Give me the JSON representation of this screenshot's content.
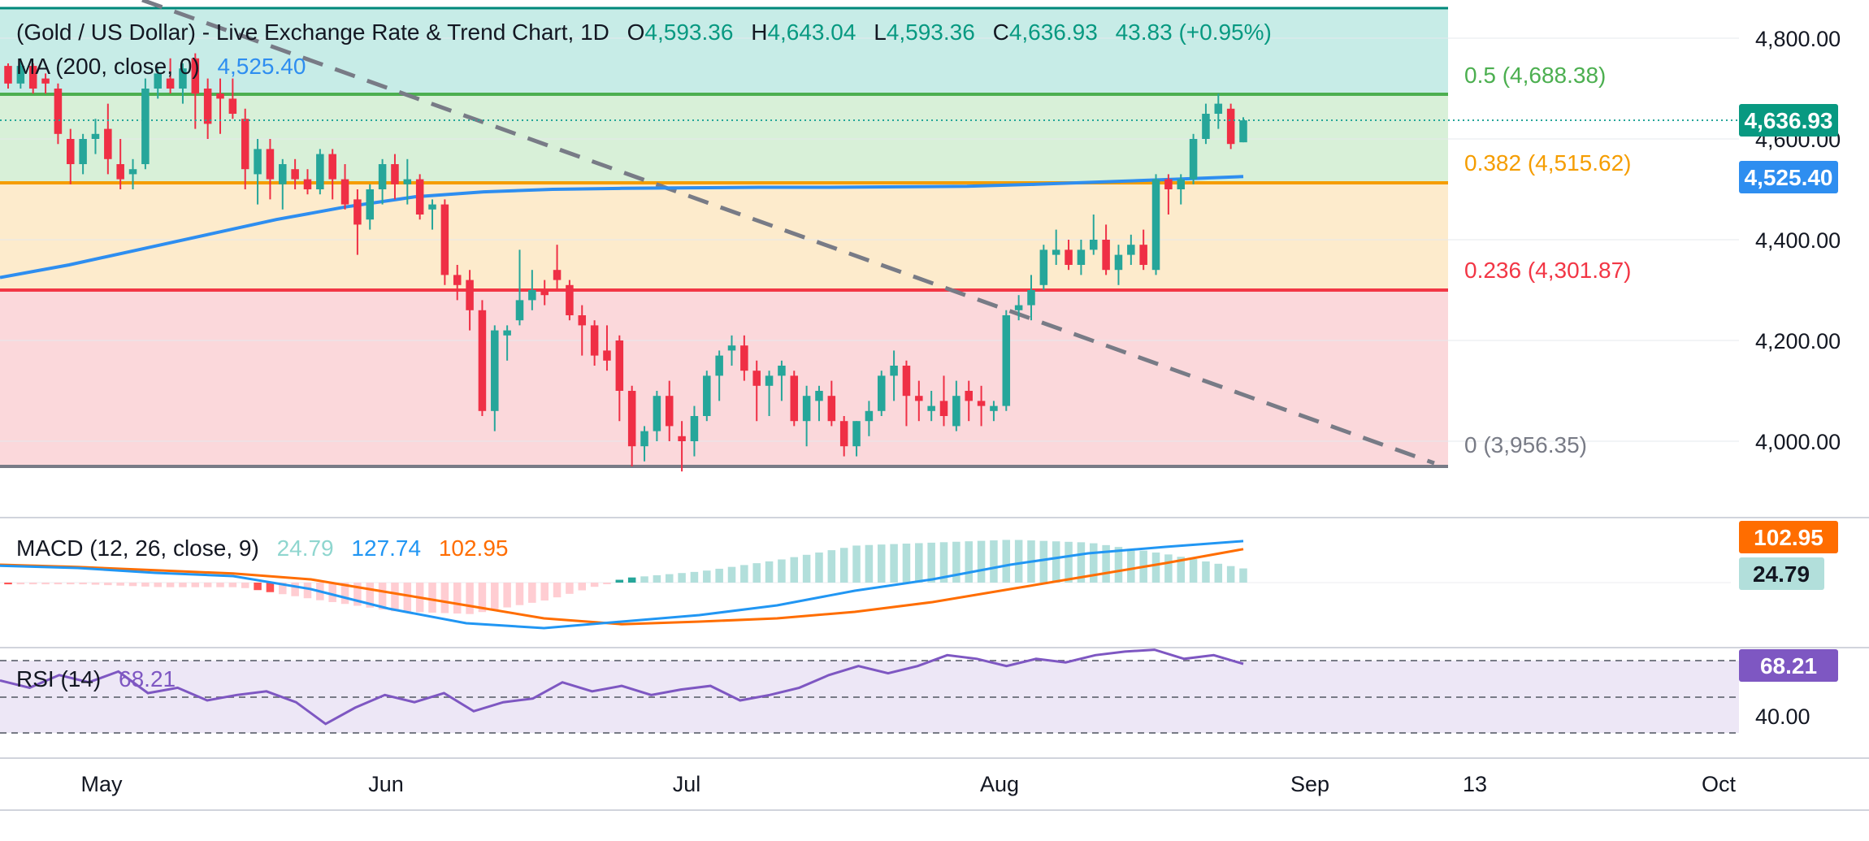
{
  "header": {
    "title": "(Gold / US Dollar) - Live Exchange Rate & Trend Chart, 1D",
    "o_label": "O",
    "o_value": "4,593.36",
    "h_label": "H",
    "h_value": "4,643.04",
    "l_label": "L",
    "l_value": "4,593.36",
    "c_label": "C",
    "c_value": "4,636.93",
    "change": "43.83 (+0.95%)"
  },
  "ma_legend": {
    "label": "MA (200, close, 0)",
    "value": "4,525.40"
  },
  "macd_legend": {
    "label": "MACD (12, 26, close, 9)",
    "histogram": "24.79",
    "macd": "127.74",
    "signal": "102.95"
  },
  "rsi_legend": {
    "label": "RSI (14)",
    "value": "68.21"
  },
  "fib_labels": {
    "f05": "0.5 (4,688.38)",
    "f0382": "0.382 (4,515.62)",
    "f0236": "0.236 (4,301.87)",
    "f0": "0 (3,956.35)"
  },
  "price_tags": {
    "close": "4,636.93",
    "ma": "4,525.40",
    "macd_signal": "102.95",
    "macd_hist": "24.79",
    "rsi": "68.21"
  },
  "price_axis": [
    "4,800.00",
    "4,600.00",
    "4,400.00",
    "4,200.00",
    "4,000.00"
  ],
  "rsi_axis": [
    "40.00"
  ],
  "time_axis": [
    "May",
    "Jun",
    "Jul",
    "Aug",
    "Sep",
    "13",
    "Oct"
  ],
  "colors": {
    "bull": "#26a69a",
    "bear": "#ef2f45",
    "ma": "#2e8ef0",
    "fib05": "#4caf50",
    "fib0382": "#f59d00",
    "fib0236": "#f23645",
    "fib0": "#787b86",
    "macd_line": "#2196f3",
    "signal_line": "#ff6d00",
    "rsi_line": "#7e57c2",
    "trend_line": "#787b86"
  },
  "chart_data": {
    "type": "candlestick",
    "price_ylim": [
      3900,
      4850
    ],
    "fib_levels": [
      {
        "ratio": 0.5,
        "price": 4688.38
      },
      {
        "ratio": 0.382,
        "price": 4515.62
      },
      {
        "ratio": 0.236,
        "price": 4301.87
      },
      {
        "ratio": 0,
        "price": 3956.35
      }
    ],
    "candles": [
      [
        4745,
        4750,
        4700,
        4710
      ],
      [
        4710,
        4760,
        4700,
        4745
      ],
      [
        4745,
        4750,
        4690,
        4700
      ],
      [
        4720,
        4730,
        4690,
        4710
      ],
      [
        4700,
        4710,
        4590,
        4610
      ],
      [
        4600,
        4620,
        4510,
        4550
      ],
      [
        4550,
        4610,
        4530,
        4600
      ],
      [
        4600,
        4640,
        4570,
        4610
      ],
      [
        4620,
        4670,
        4530,
        4560
      ],
      [
        4550,
        4600,
        4500,
        4520
      ],
      [
        4530,
        4560,
        4500,
        4540
      ],
      [
        4550,
        4720,
        4540,
        4700
      ],
      [
        4700,
        4740,
        4680,
        4730
      ],
      [
        4720,
        4760,
        4690,
        4700
      ],
      [
        4700,
        4750,
        4670,
        4740
      ],
      [
        4760,
        4770,
        4620,
        4690
      ],
      [
        4700,
        4720,
        4600,
        4630
      ],
      [
        4690,
        4720,
        4610,
        4680
      ],
      [
        4680,
        4720,
        4640,
        4650
      ],
      [
        4640,
        4660,
        4500,
        4540
      ],
      [
        4530,
        4600,
        4470,
        4580
      ],
      [
        4580,
        4600,
        4480,
        4520
      ],
      [
        4510,
        4560,
        4460,
        4550
      ],
      [
        4540,
        4560,
        4500,
        4520
      ],
      [
        4520,
        4540,
        4490,
        4500
      ],
      [
        4500,
        4580,
        4490,
        4570
      ],
      [
        4570,
        4580,
        4480,
        4520
      ],
      [
        4520,
        4550,
        4460,
        4470
      ],
      [
        4480,
        4500,
        4370,
        4430
      ],
      [
        4440,
        4510,
        4420,
        4500
      ],
      [
        4500,
        4560,
        4470,
        4550
      ],
      [
        4550,
        4570,
        4480,
        4510
      ],
      [
        4510,
        4560,
        4470,
        4520
      ],
      [
        4520,
        4530,
        4440,
        4450
      ],
      [
        4460,
        4480,
        4420,
        4470
      ],
      [
        4470,
        4480,
        4310,
        4330
      ],
      [
        4330,
        4350,
        4280,
        4310
      ],
      [
        4320,
        4340,
        4220,
        4260
      ],
      [
        4260,
        4280,
        4050,
        4060
      ],
      [
        4060,
        4230,
        4020,
        4220
      ],
      [
        4210,
        4230,
        4160,
        4220
      ],
      [
        4240,
        4380,
        4230,
        4280
      ],
      [
        4280,
        4340,
        4260,
        4300
      ],
      [
        4300,
        4320,
        4270,
        4290
      ],
      [
        4340,
        4390,
        4300,
        4320
      ],
      [
        4310,
        4320,
        4240,
        4250
      ],
      [
        4250,
        4270,
        4170,
        4230
      ],
      [
        4230,
        4240,
        4150,
        4170
      ],
      [
        4180,
        4230,
        4140,
        4160
      ],
      [
        4200,
        4210,
        4040,
        4100
      ],
      [
        4100,
        4110,
        3950,
        3990
      ],
      [
        3990,
        4030,
        3960,
        4020
      ],
      [
        4020,
        4100,
        4000,
        4090
      ],
      [
        4090,
        4120,
        4000,
        4030
      ],
      [
        4010,
        4040,
        3940,
        4000
      ],
      [
        4000,
        4070,
        3970,
        4050
      ],
      [
        4050,
        4140,
        4040,
        4130
      ],
      [
        4130,
        4180,
        4080,
        4170
      ],
      [
        4180,
        4210,
        4150,
        4190
      ],
      [
        4190,
        4210,
        4120,
        4140
      ],
      [
        4140,
        4160,
        4040,
        4110
      ],
      [
        4110,
        4140,
        4050,
        4130
      ],
      [
        4130,
        4160,
        4080,
        4150
      ],
      [
        4130,
        4140,
        4030,
        4040
      ],
      [
        4040,
        4110,
        3990,
        4090
      ],
      [
        4080,
        4110,
        4040,
        4100
      ],
      [
        4090,
        4120,
        4030,
        4040
      ],
      [
        4040,
        4050,
        3970,
        3990
      ],
      [
        3990,
        4040,
        3970,
        4040
      ],
      [
        4040,
        4080,
        4010,
        4060
      ],
      [
        4060,
        4140,
        4050,
        4130
      ],
      [
        4130,
        4180,
        4080,
        4150
      ],
      [
        4150,
        4160,
        4030,
        4090
      ],
      [
        4090,
        4120,
        4040,
        4080
      ],
      [
        4060,
        4100,
        4040,
        4070
      ],
      [
        4080,
        4130,
        4030,
        4050
      ],
      [
        4030,
        4120,
        4020,
        4090
      ],
      [
        4100,
        4120,
        4040,
        4080
      ],
      [
        4080,
        4110,
        4030,
        4070
      ],
      [
        4060,
        4080,
        4040,
        4070
      ],
      [
        4070,
        4260,
        4060,
        4250
      ],
      [
        4260,
        4290,
        4240,
        4270
      ],
      [
        4270,
        4330,
        4240,
        4300
      ],
      [
        4310,
        4390,
        4300,
        4380
      ],
      [
        4370,
        4420,
        4350,
        4380
      ],
      [
        4380,
        4400,
        4340,
        4350
      ],
      [
        4350,
        4400,
        4330,
        4380
      ],
      [
        4380,
        4450,
        4370,
        4400
      ],
      [
        4400,
        4430,
        4330,
        4340
      ],
      [
        4340,
        4390,
        4310,
        4370
      ],
      [
        4370,
        4410,
        4350,
        4390
      ],
      [
        4390,
        4420,
        4340,
        4350
      ],
      [
        4340,
        4530,
        4330,
        4520
      ],
      [
        4520,
        4530,
        4450,
        4500
      ],
      [
        4500,
        4530,
        4470,
        4520
      ],
      [
        4520,
        4610,
        4510,
        4600
      ],
      [
        4600,
        4670,
        4590,
        4650
      ],
      [
        4650,
        4690,
        4620,
        4670
      ],
      [
        4660,
        4670,
        4580,
        4590
      ],
      [
        4593.36,
        4643.04,
        4593.36,
        4636.93
      ]
    ],
    "ma200": [
      4325,
      4350,
      4380,
      4410,
      4440,
      4465,
      4485,
      4495,
      4500,
      4502,
      4503,
      4504,
      4504,
      4505,
      4506,
      4510,
      4515,
      4520,
      4525.4
    ],
    "macd": [
      52,
      45,
      30,
      20,
      -20,
      -80,
      -125,
      -140,
      -120,
      -100,
      -70,
      -25,
      10,
      55,
      90,
      110,
      127.74
    ],
    "signal": [
      55,
      48,
      38,
      28,
      10,
      -30,
      -70,
      -110,
      -128,
      -120,
      -110,
      -90,
      -60,
      -20,
      20,
      60,
      102.95
    ],
    "histogram_recent": 24.79,
    "rsi": [
      59,
      55,
      62,
      58,
      64,
      52,
      55,
      48,
      51,
      53,
      47,
      35,
      44,
      51,
      47,
      52,
      42,
      47,
      49,
      58,
      53,
      56,
      51,
      54,
      56,
      48,
      51,
      55,
      62,
      67,
      63,
      67,
      73,
      71,
      67,
      71,
      69,
      73,
      75,
      76,
      71,
      73,
      68.21
    ],
    "rsi_levels": [
      70,
      50,
      30
    ]
  }
}
